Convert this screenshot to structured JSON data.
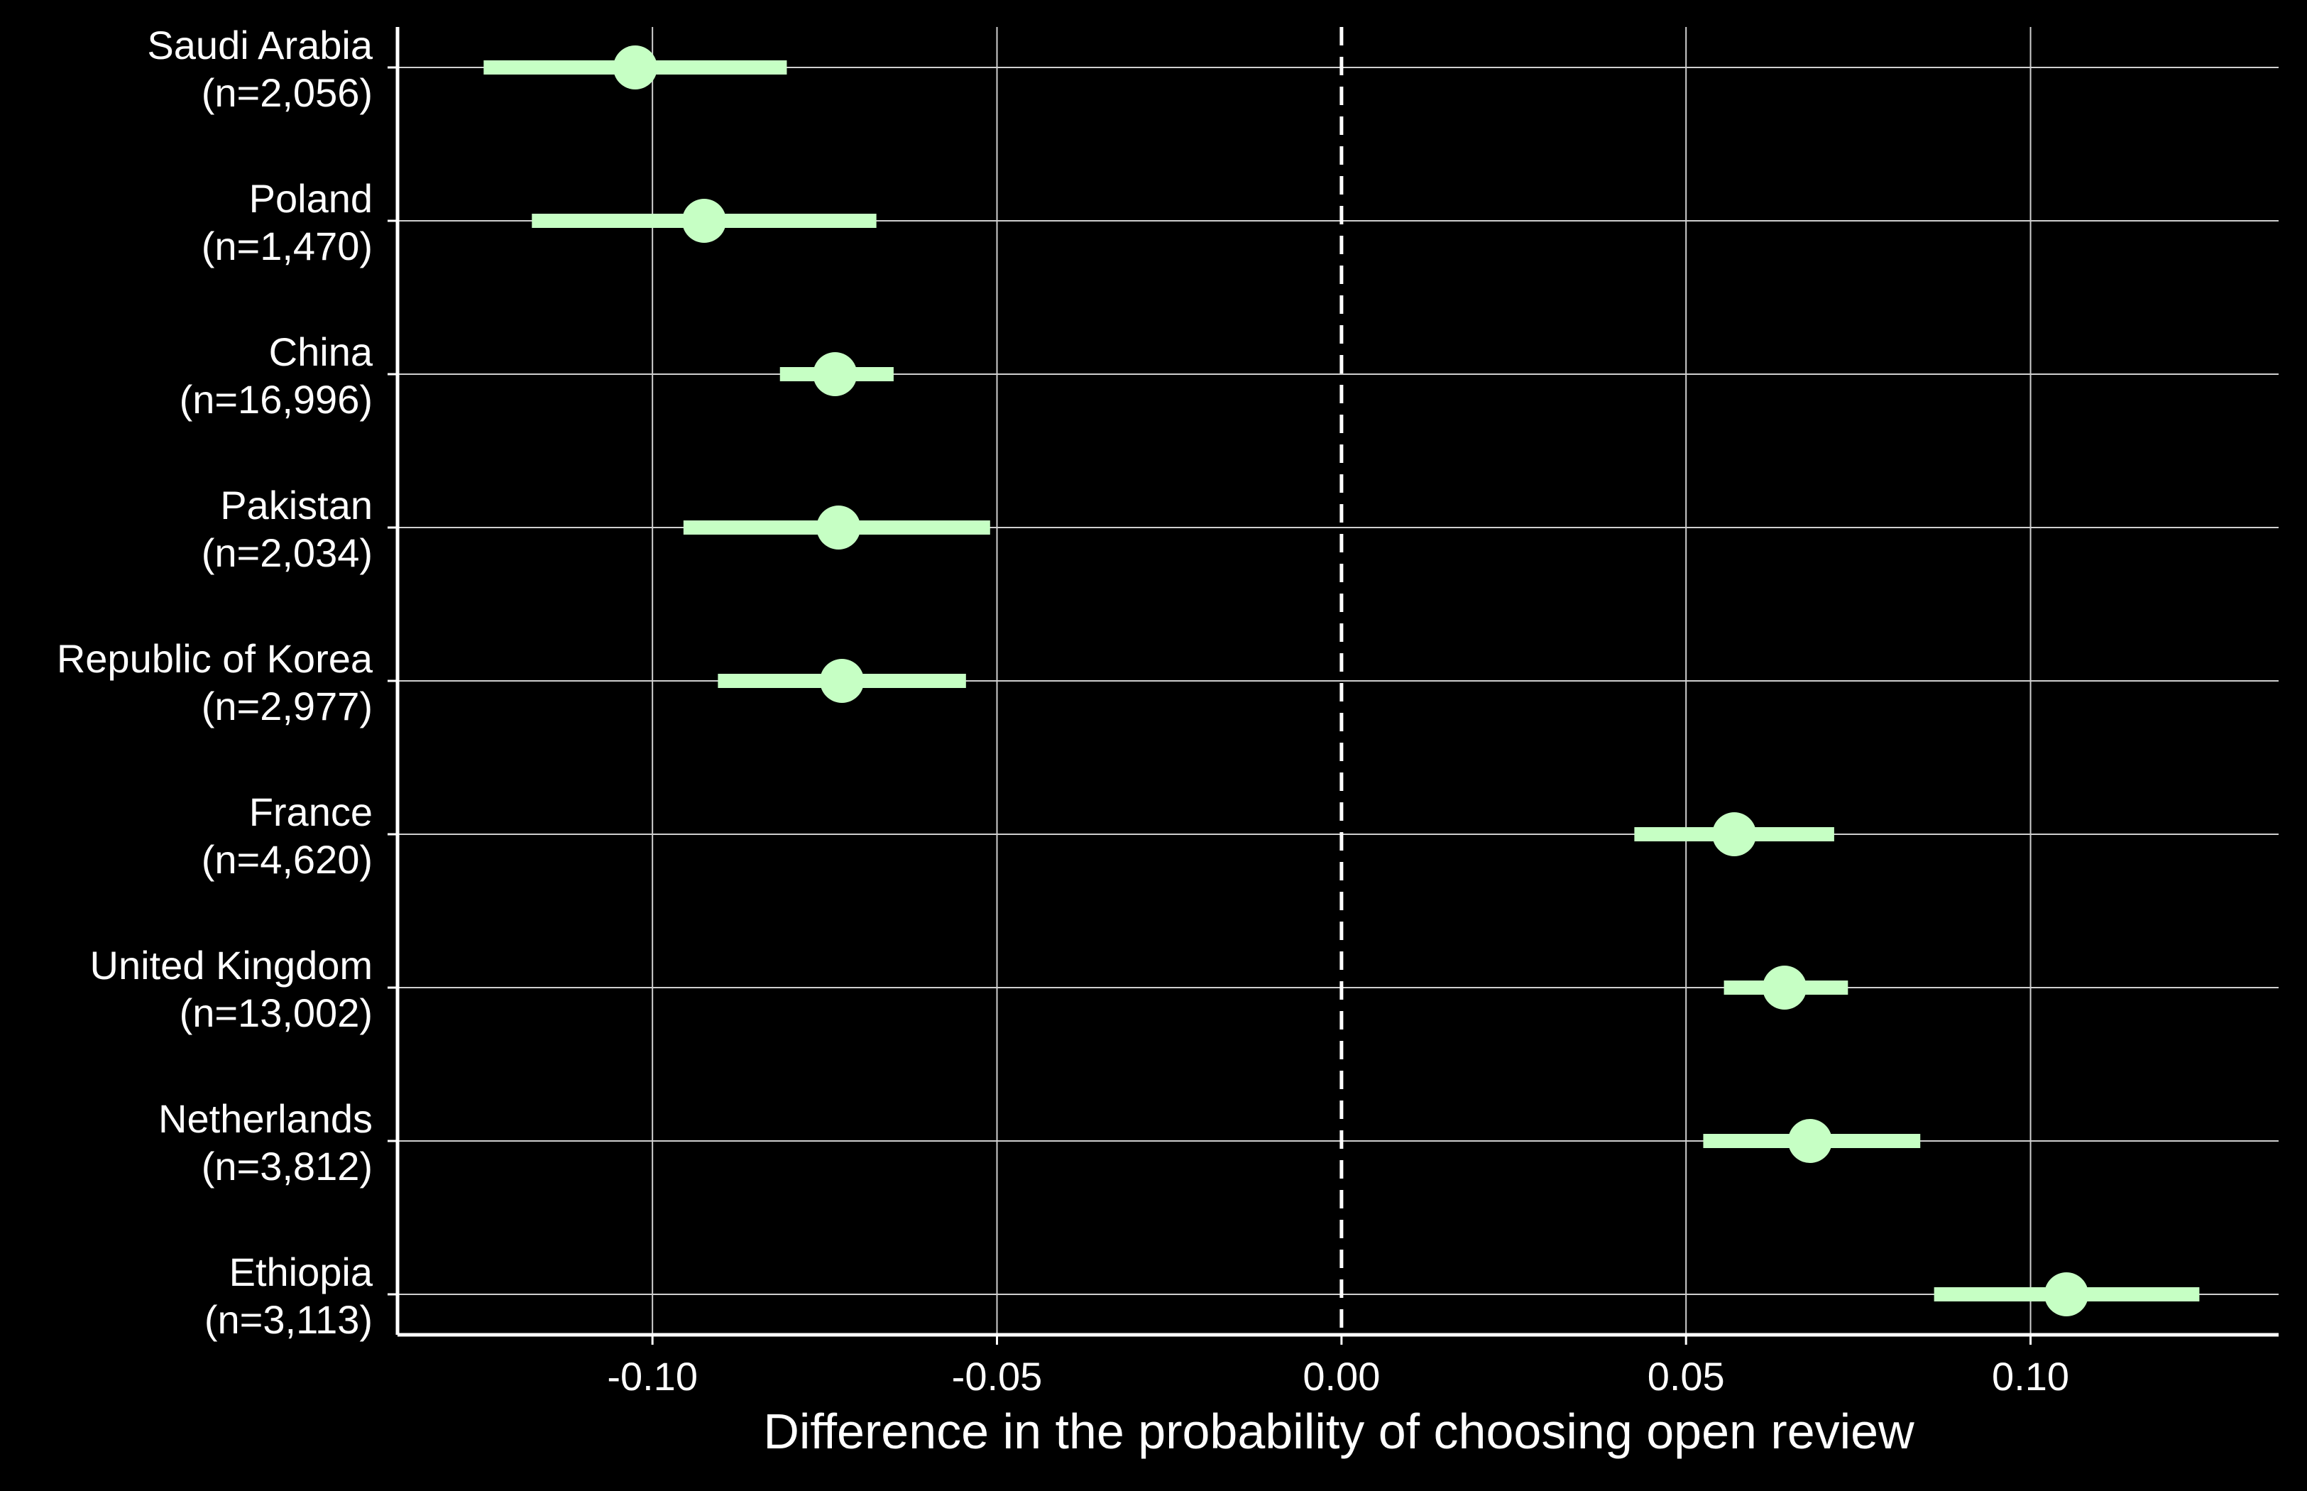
{
  "chart_data": {
    "type": "scatter",
    "subtype": "point-range",
    "orientation": "horizontal",
    "title": "",
    "xlabel": "Difference in the probability of choosing open review",
    "ylabel": "",
    "xlim": [
      -0.137,
      0.136
    ],
    "x_ticks": [
      -0.1,
      -0.05,
      0.0,
      0.05,
      0.1
    ],
    "x_tick_labels": [
      "-0.10",
      "-0.05",
      "0.00",
      "0.05",
      "0.10"
    ],
    "reference_line": {
      "x": 0.0,
      "style": "dashed"
    },
    "grid": true,
    "legend": "none",
    "point_color": "#c6ffc4",
    "background_color": "#000000",
    "grid_color": "#cfcfcf",
    "text_color": "#ffffff",
    "categories": [
      "Saudi Arabia",
      "Poland",
      "China",
      "Pakistan",
      "Republic of Korea",
      "France",
      "United Kingdom",
      "Netherlands",
      "Ethiopia"
    ],
    "sample_sizes": [
      "(n=2,056)",
      "(n=1,470)",
      "(n=16,996)",
      "(n=2,034)",
      "(n=2,977)",
      "(n=4,620)",
      "(n=13,002)",
      "(n=3,812)",
      "(n=3,113)"
    ],
    "estimates": [
      -0.1025,
      -0.0925,
      -0.0735,
      -0.073,
      -0.0725,
      0.057,
      0.0643,
      0.068,
      0.1052
    ],
    "ci_lower": [
      -0.1245,
      -0.1175,
      -0.0815,
      -0.0955,
      -0.0905,
      0.0425,
      0.0555,
      0.0525,
      0.086
    ],
    "ci_upper": [
      -0.0805,
      -0.0675,
      -0.065,
      -0.051,
      -0.0545,
      0.0715,
      0.0735,
      0.084,
      0.1245
    ]
  }
}
